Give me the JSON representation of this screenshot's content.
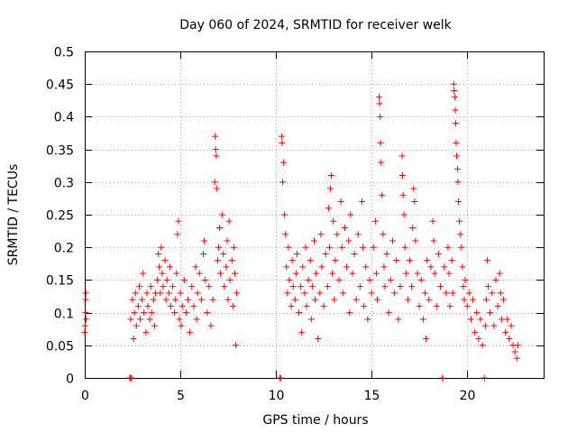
{
  "chart_data": {
    "type": "scatter",
    "title": "Day 060 of 2024, SRMTID for receiver welk",
    "xlabel": "GPS time / hours",
    "ylabel": "SRMTID / TECUs",
    "xlim": [
      0,
      24
    ],
    "ylim": [
      0,
      0.5
    ],
    "x_ticks": [
      0,
      5,
      10,
      15,
      20
    ],
    "x_tick_labels": [
      "0",
      "5",
      "10",
      "15",
      "20"
    ],
    "y_ticks": [
      0,
      0.05,
      0.1,
      0.15,
      0.2,
      0.25,
      0.3,
      0.35,
      0.4,
      0.45,
      0.5
    ],
    "y_tick_labels": [
      "0",
      "0.05",
      "0.1",
      "0.15",
      "0.2",
      "0.25",
      "0.3",
      "0.35",
      "0.4",
      "0.45",
      "0.5"
    ],
    "grid": true,
    "marker": "+",
    "color": "#ff0000",
    "series": [
      {
        "name": "SRMTID",
        "points": [
          [
            0.0,
            0.07
          ],
          [
            0.02,
            0.08
          ],
          [
            0.04,
            0.1
          ],
          [
            0.05,
            0.12
          ],
          [
            0.06,
            0.13
          ],
          [
            0.08,
            0.09
          ],
          [
            2.35,
            0.0
          ],
          [
            2.4,
            0.0
          ],
          [
            2.45,
            0.0
          ],
          [
            2.4,
            0.09
          ],
          [
            2.5,
            0.12
          ],
          [
            2.55,
            0.06
          ],
          [
            2.6,
            0.1
          ],
          [
            2.65,
            0.13
          ],
          [
            2.7,
            0.08
          ],
          [
            2.8,
            0.11
          ],
          [
            2.85,
            0.14
          ],
          [
            2.9,
            0.09
          ],
          [
            3.0,
            0.12
          ],
          [
            3.05,
            0.16
          ],
          [
            3.1,
            0.1
          ],
          [
            3.2,
            0.07
          ],
          [
            3.25,
            0.13
          ],
          [
            3.3,
            0.11
          ],
          [
            3.4,
            0.09
          ],
          [
            3.45,
            0.14
          ],
          [
            3.5,
            0.1
          ],
          [
            3.6,
            0.12
          ],
          [
            3.65,
            0.08
          ],
          [
            3.7,
            0.13
          ],
          [
            3.8,
            0.15
          ],
          [
            3.85,
            0.19
          ],
          [
            3.9,
            0.17
          ],
          [
            3.95,
            0.13
          ],
          [
            4.0,
            0.2
          ],
          [
            4.05,
            0.16
          ],
          [
            4.1,
            0.14
          ],
          [
            4.2,
            0.18
          ],
          [
            4.25,
            0.12
          ],
          [
            4.3,
            0.15
          ],
          [
            4.4,
            0.13
          ],
          [
            4.45,
            0.17
          ],
          [
            4.5,
            0.11
          ],
          [
            4.6,
            0.14
          ],
          [
            4.7,
            0.1
          ],
          [
            4.75,
            0.12
          ],
          [
            4.8,
            0.16
          ],
          [
            4.85,
            0.22
          ],
          [
            4.9,
            0.24
          ],
          [
            4.95,
            0.09
          ],
          [
            5.0,
            0.13
          ],
          [
            5.05,
            0.08
          ],
          [
            5.1,
            0.11
          ],
          [
            5.2,
            0.15
          ],
          [
            5.3,
            0.1
          ],
          [
            5.4,
            0.12
          ],
          [
            5.5,
            0.07
          ],
          [
            5.6,
            0.14
          ],
          [
            5.7,
            0.11
          ],
          [
            5.8,
            0.17
          ],
          [
            5.85,
            0.09
          ],
          [
            5.9,
            0.13
          ],
          [
            6.0,
            0.16
          ],
          [
            6.1,
            0.12
          ],
          [
            6.2,
            0.19
          ],
          [
            6.25,
            0.21
          ],
          [
            6.3,
            0.15
          ],
          [
            6.4,
            0.1
          ],
          [
            6.5,
            0.14
          ],
          [
            6.6,
            0.08
          ],
          [
            6.7,
            0.12
          ],
          [
            6.8,
            0.3
          ],
          [
            6.82,
            0.37
          ],
          [
            6.85,
            0.35
          ],
          [
            6.88,
            0.34
          ],
          [
            6.9,
            0.29
          ],
          [
            6.95,
            0.18
          ],
          [
            7.0,
            0.2
          ],
          [
            7.05,
            0.23
          ],
          [
            7.1,
            0.16
          ],
          [
            7.2,
            0.25
          ],
          [
            7.25,
            0.19
          ],
          [
            7.3,
            0.14
          ],
          [
            7.4,
            0.17
          ],
          [
            7.45,
            0.21
          ],
          [
            7.5,
            0.12
          ],
          [
            7.55,
            0.24
          ],
          [
            7.6,
            0.15
          ],
          [
            7.7,
            0.18
          ],
          [
            7.75,
            0.11
          ],
          [
            7.8,
            0.2
          ],
          [
            7.85,
            0.16
          ],
          [
            7.9,
            0.05
          ],
          [
            7.95,
            0.13
          ],
          [
            10.2,
            0.0
          ],
          [
            10.25,
            0.0
          ],
          [
            10.3,
            0.37
          ],
          [
            10.32,
            0.36
          ],
          [
            10.35,
            0.3
          ],
          [
            10.4,
            0.33
          ],
          [
            10.45,
            0.25
          ],
          [
            10.5,
            0.22
          ],
          [
            10.55,
            0.17
          ],
          [
            10.6,
            0.13
          ],
          [
            10.65,
            0.2
          ],
          [
            10.7,
            0.15
          ],
          [
            10.8,
            0.11
          ],
          [
            10.85,
            0.18
          ],
          [
            10.9,
            0.14
          ],
          [
            11.0,
            0.12
          ],
          [
            11.05,
            0.16
          ],
          [
            11.1,
            0.19
          ],
          [
            11.2,
            0.1
          ],
          [
            11.3,
            0.14
          ],
          [
            11.35,
            0.07
          ],
          [
            11.4,
            0.17
          ],
          [
            11.5,
            0.13
          ],
          [
            11.55,
            0.2
          ],
          [
            11.6,
            0.11
          ],
          [
            11.7,
            0.15
          ],
          [
            11.8,
            0.18
          ],
          [
            11.85,
            0.09
          ],
          [
            11.9,
            0.14
          ],
          [
            12.0,
            0.21
          ],
          [
            12.05,
            0.12
          ],
          [
            12.1,
            0.16
          ],
          [
            12.2,
            0.06
          ],
          [
            12.3,
            0.13
          ],
          [
            12.35,
            0.22
          ],
          [
            12.4,
            0.17
          ],
          [
            12.5,
            0.11
          ],
          [
            12.6,
            0.19
          ],
          [
            12.7,
            0.14
          ],
          [
            12.75,
            0.26
          ],
          [
            12.8,
            0.2
          ],
          [
            12.85,
            0.29
          ],
          [
            12.9,
            0.31
          ],
          [
            12.95,
            0.16
          ],
          [
            13.0,
            0.24
          ],
          [
            13.05,
            0.12
          ],
          [
            13.1,
            0.18
          ],
          [
            13.2,
            0.22
          ],
          [
            13.3,
            0.15
          ],
          [
            13.4,
            0.27
          ],
          [
            13.45,
            0.2
          ],
          [
            13.5,
            0.13
          ],
          [
            13.6,
            0.23
          ],
          [
            13.7,
            0.17
          ],
          [
            13.8,
            0.21
          ],
          [
            13.85,
            0.1
          ],
          [
            13.9,
            0.25
          ],
          [
            14.0,
            0.16
          ],
          [
            14.1,
            0.19
          ],
          [
            14.2,
            0.12
          ],
          [
            14.3,
            0.22
          ],
          [
            14.4,
            0.14
          ],
          [
            14.5,
            0.27
          ],
          [
            14.55,
            0.2
          ],
          [
            14.6,
            0.11
          ],
          [
            14.7,
            0.17
          ],
          [
            14.8,
            0.09
          ],
          [
            14.9,
            0.15
          ],
          [
            15.0,
            0.13
          ],
          [
            15.1,
            0.2
          ],
          [
            15.2,
            0.24
          ],
          [
            15.25,
            0.16
          ],
          [
            15.3,
            0.12
          ],
          [
            15.4,
            0.43
          ],
          [
            15.42,
            0.42
          ],
          [
            15.45,
            0.4
          ],
          [
            15.47,
            0.36
          ],
          [
            15.5,
            0.33
          ],
          [
            15.55,
            0.28
          ],
          [
            15.6,
            0.22
          ],
          [
            15.65,
            0.17
          ],
          [
            15.7,
            0.14
          ],
          [
            15.8,
            0.19
          ],
          [
            15.9,
            0.1
          ],
          [
            16.0,
            0.15
          ],
          [
            16.1,
            0.21
          ],
          [
            16.2,
            0.13
          ],
          [
            16.3,
            0.18
          ],
          [
            16.4,
            0.09
          ],
          [
            16.5,
            0.14
          ],
          [
            16.6,
            0.34
          ],
          [
            16.62,
            0.31
          ],
          [
            16.65,
            0.28
          ],
          [
            16.7,
            0.25
          ],
          [
            16.75,
            0.2
          ],
          [
            16.8,
            0.16
          ],
          [
            16.9,
            0.12
          ],
          [
            17.0,
            0.18
          ],
          [
            17.1,
            0.14
          ],
          [
            17.15,
            0.23
          ],
          [
            17.2,
            0.29
          ],
          [
            17.25,
            0.27
          ],
          [
            17.3,
            0.21
          ],
          [
            17.4,
            0.16
          ],
          [
            17.5,
            0.11
          ],
          [
            17.6,
            0.15
          ],
          [
            17.7,
            0.09
          ],
          [
            17.8,
            0.13
          ],
          [
            17.85,
            0.06
          ],
          [
            17.9,
            0.18
          ],
          [
            18.0,
            0.12
          ],
          [
            18.1,
            0.17
          ],
          [
            18.2,
            0.24
          ],
          [
            18.25,
            0.21
          ],
          [
            18.3,
            0.16
          ],
          [
            18.4,
            0.11
          ],
          [
            18.5,
            0.19
          ],
          [
            18.6,
            0.14
          ],
          [
            18.7,
            0.0
          ],
          [
            18.8,
            0.17
          ],
          [
            18.9,
            0.13
          ],
          [
            19.0,
            0.2
          ],
          [
            19.05,
            0.16
          ],
          [
            19.1,
            0.11
          ],
          [
            19.2,
            0.18
          ],
          [
            19.25,
            0.13
          ],
          [
            19.3,
            0.45
          ],
          [
            19.32,
            0.44
          ],
          [
            19.35,
            0.43
          ],
          [
            19.38,
            0.41
          ],
          [
            19.4,
            0.39
          ],
          [
            19.42,
            0.36
          ],
          [
            19.45,
            0.34
          ],
          [
            19.5,
            0.32
          ],
          [
            19.52,
            0.3
          ],
          [
            19.55,
            0.27
          ],
          [
            19.6,
            0.24
          ],
          [
            19.65,
            0.22
          ],
          [
            19.7,
            0.2
          ],
          [
            19.75,
            0.17
          ],
          [
            19.8,
            0.14
          ],
          [
            19.85,
            0.12
          ],
          [
            19.9,
            0.15
          ],
          [
            20.0,
            0.11
          ],
          [
            20.1,
            0.13
          ],
          [
            20.2,
            0.09
          ],
          [
            20.3,
            0.12
          ],
          [
            20.4,
            0.07
          ],
          [
            20.5,
            0.1
          ],
          [
            20.6,
            0.06
          ],
          [
            20.7,
            0.09
          ],
          [
            20.8,
            0.05
          ],
          [
            20.9,
            0.0
          ],
          [
            20.95,
            0.08
          ],
          [
            21.0,
            0.12
          ],
          [
            21.05,
            0.18
          ],
          [
            21.1,
            0.14
          ],
          [
            21.2,
            0.1
          ],
          [
            21.3,
            0.13
          ],
          [
            21.4,
            0.08
          ],
          [
            21.5,
            0.15
          ],
          [
            21.6,
            0.11
          ],
          [
            21.7,
            0.16
          ],
          [
            21.75,
            0.13
          ],
          [
            21.8,
            0.09
          ],
          [
            21.9,
            0.12
          ],
          [
            22.0,
            0.07
          ],
          [
            22.1,
            0.09
          ],
          [
            22.2,
            0.06
          ],
          [
            22.3,
            0.08
          ],
          [
            22.4,
            0.05
          ],
          [
            22.5,
            0.04
          ],
          [
            22.6,
            0.03
          ],
          [
            22.65,
            0.05
          ]
        ]
      }
    ]
  }
}
